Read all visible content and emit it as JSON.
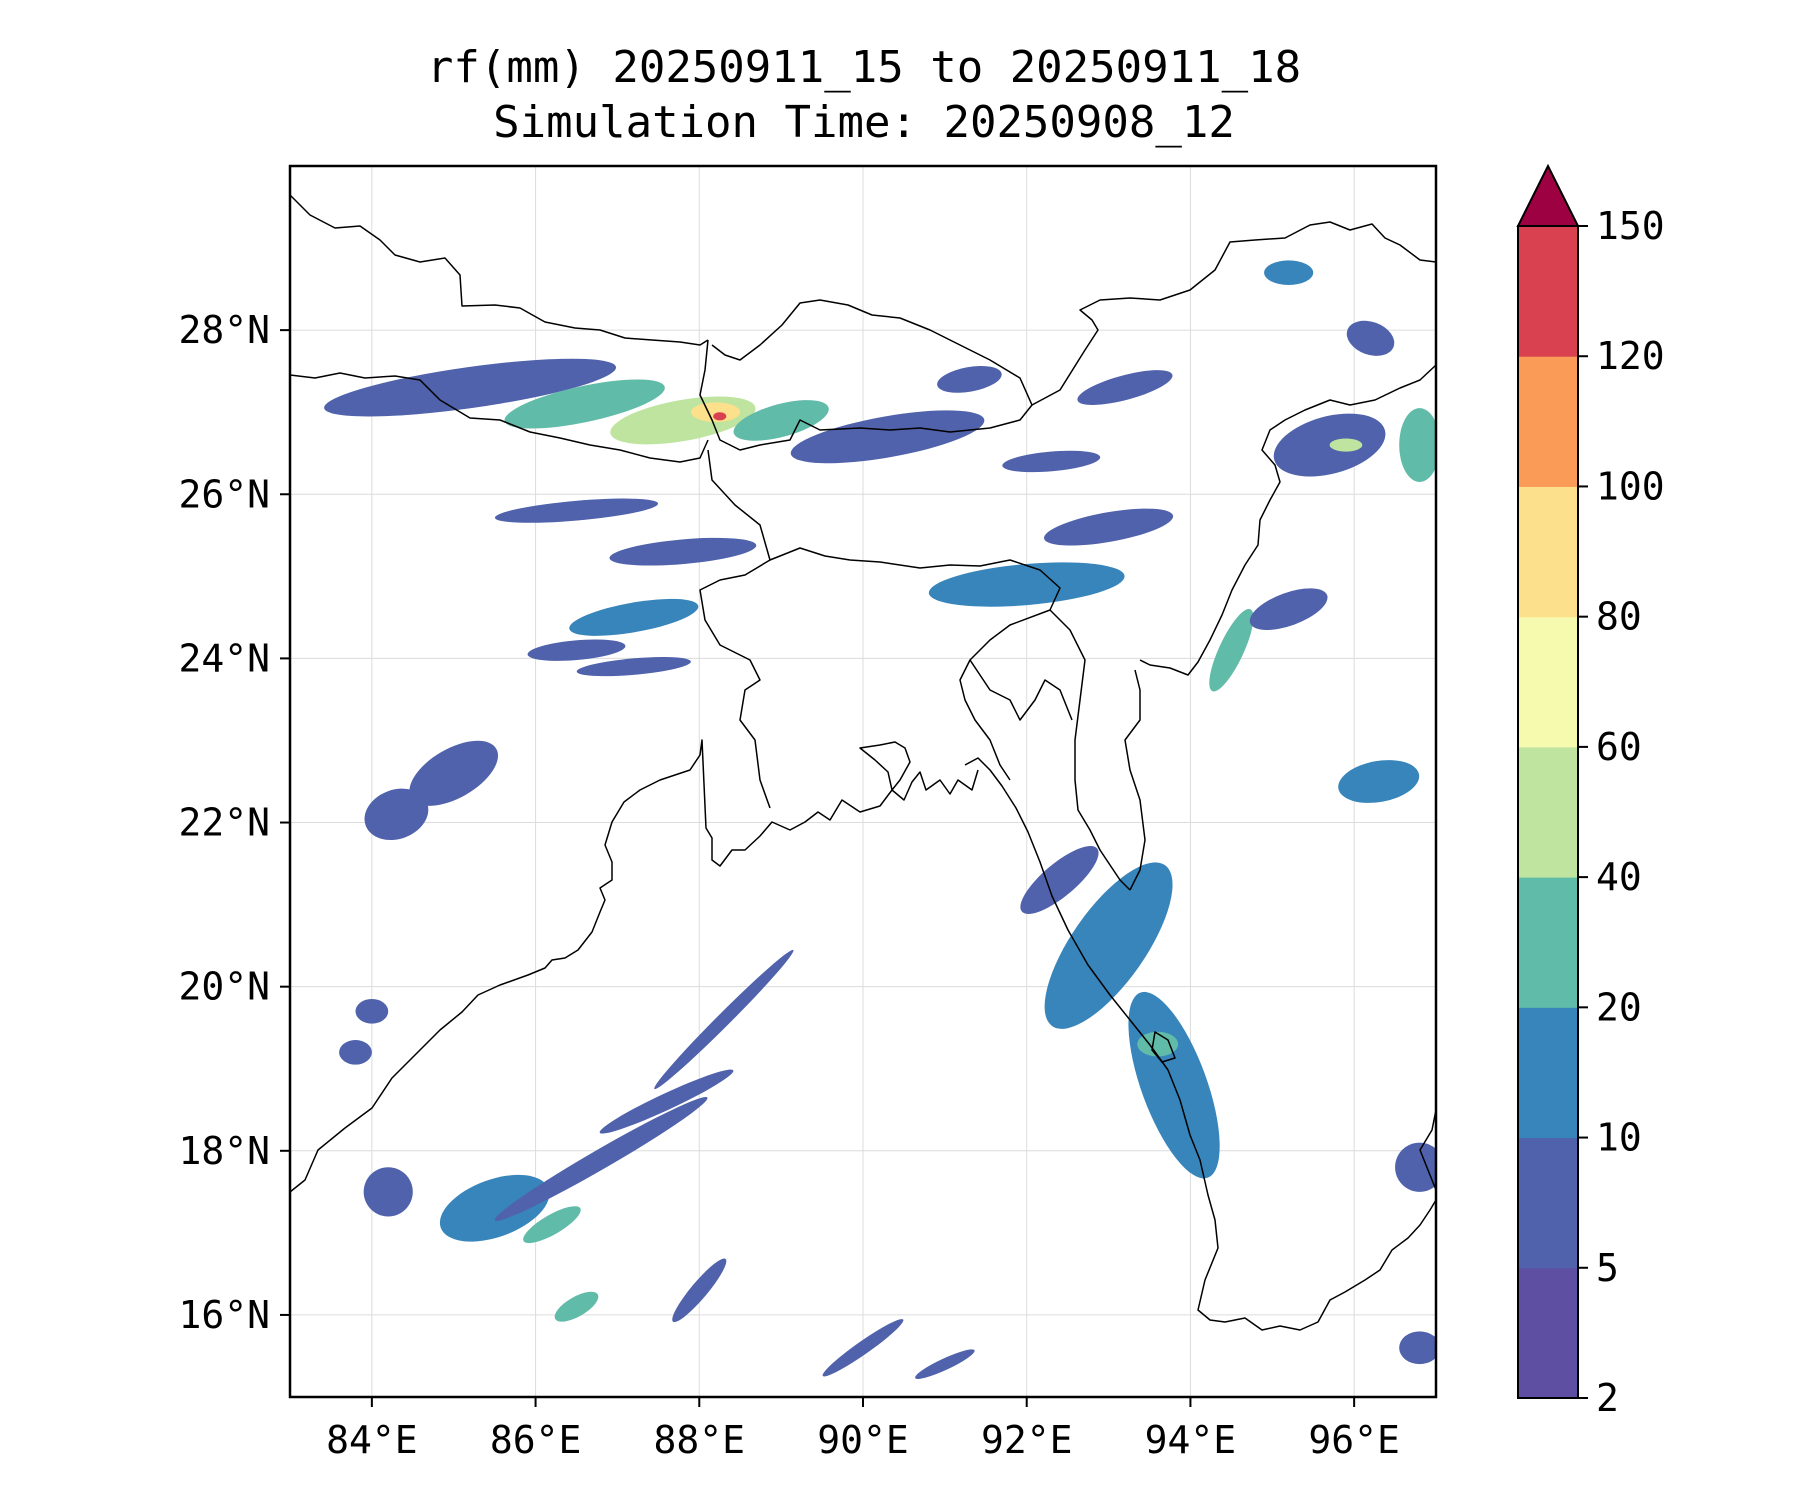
{
  "title": {
    "line1": "rf(mm) 20250911_15 to 20250911_18",
    "line2": "Simulation Time: 20250908_12"
  },
  "map": {
    "lon_range": [
      83,
      97
    ],
    "lat_range": [
      15,
      30
    ],
    "x_ticks": [
      "84°E",
      "86°E",
      "88°E",
      "90°E",
      "92°E",
      "94°E",
      "96°E"
    ],
    "x_tick_values": [
      84,
      86,
      88,
      90,
      92,
      94,
      96
    ],
    "y_ticks": [
      "28°N",
      "26°N",
      "24°N",
      "22°N",
      "20°N",
      "18°N",
      "16°N"
    ],
    "y_tick_values": [
      28,
      26,
      24,
      22,
      20,
      18,
      16
    ],
    "gridlines": true,
    "rain_cells": [
      {
        "lon": 85.2,
        "lat": 27.3,
        "rx": 1.8,
        "ry": 0.25,
        "rot": -8,
        "level": 1
      },
      {
        "lon": 86.6,
        "lat": 27.1,
        "rx": 1.0,
        "ry": 0.22,
        "rot": -12,
        "level": 3
      },
      {
        "lon": 87.8,
        "lat": 26.9,
        "rx": 0.9,
        "ry": 0.25,
        "rot": -10,
        "level": 4
      },
      {
        "lon": 88.2,
        "lat": 27.0,
        "rx": 0.3,
        "ry": 0.12,
        "rot": 0,
        "level": 6
      },
      {
        "lon": 88.25,
        "lat": 26.95,
        "rx": 0.08,
        "ry": 0.05,
        "rot": 0,
        "level": 9
      },
      {
        "lon": 89.0,
        "lat": 26.9,
        "rx": 0.6,
        "ry": 0.2,
        "rot": -15,
        "level": 3
      },
      {
        "lon": 90.3,
        "lat": 26.7,
        "rx": 1.2,
        "ry": 0.25,
        "rot": -10,
        "level": 1
      },
      {
        "lon": 86.5,
        "lat": 25.8,
        "rx": 1.0,
        "ry": 0.12,
        "rot": -5,
        "level": 1
      },
      {
        "lon": 87.8,
        "lat": 25.3,
        "rx": 0.9,
        "ry": 0.15,
        "rot": -5,
        "level": 1
      },
      {
        "lon": 87.2,
        "lat": 24.5,
        "rx": 0.8,
        "ry": 0.18,
        "rot": -10,
        "level": 2
      },
      {
        "lon": 86.5,
        "lat": 24.1,
        "rx": 0.6,
        "ry": 0.12,
        "rot": -5,
        "level": 1
      },
      {
        "lon": 87.2,
        "lat": 23.9,
        "rx": 0.7,
        "ry": 0.1,
        "rot": -5,
        "level": 1
      },
      {
        "lon": 85.0,
        "lat": 22.6,
        "rx": 0.6,
        "ry": 0.3,
        "rot": -30,
        "level": 1
      },
      {
        "lon": 84.3,
        "lat": 22.1,
        "rx": 0.4,
        "ry": 0.3,
        "rot": -20,
        "level": 1
      },
      {
        "lon": 84.0,
        "lat": 19.7,
        "rx": 0.2,
        "ry": 0.15,
        "rot": 0,
        "level": 1
      },
      {
        "lon": 83.8,
        "lat": 19.2,
        "rx": 0.2,
        "ry": 0.15,
        "rot": 0,
        "level": 1
      },
      {
        "lon": 92.0,
        "lat": 24.9,
        "rx": 1.2,
        "ry": 0.25,
        "rot": -5,
        "level": 2
      },
      {
        "lon": 93.0,
        "lat": 25.6,
        "rx": 0.8,
        "ry": 0.18,
        "rot": -10,
        "level": 1
      },
      {
        "lon": 92.3,
        "lat": 26.4,
        "rx": 0.6,
        "ry": 0.12,
        "rot": -5,
        "level": 1
      },
      {
        "lon": 93.2,
        "lat": 27.3,
        "rx": 0.6,
        "ry": 0.15,
        "rot": -15,
        "level": 1
      },
      {
        "lon": 91.3,
        "lat": 27.4,
        "rx": 0.4,
        "ry": 0.15,
        "rot": -10,
        "level": 1
      },
      {
        "lon": 95.7,
        "lat": 26.6,
        "rx": 0.7,
        "ry": 0.35,
        "rot": -15,
        "level": 1
      },
      {
        "lon": 95.9,
        "lat": 26.6,
        "rx": 0.2,
        "ry": 0.08,
        "rot": 0,
        "level": 4
      },
      {
        "lon": 96.8,
        "lat": 26.6,
        "rx": 0.25,
        "ry": 0.45,
        "rot": 0,
        "level": 3
      },
      {
        "lon": 95.2,
        "lat": 28.7,
        "rx": 0.3,
        "ry": 0.15,
        "rot": 0,
        "level": 2
      },
      {
        "lon": 96.2,
        "lat": 27.9,
        "rx": 0.3,
        "ry": 0.2,
        "rot": 20,
        "level": 1
      },
      {
        "lon": 94.5,
        "lat": 24.1,
        "rx": 0.15,
        "ry": 0.55,
        "rot": 25,
        "level": 3
      },
      {
        "lon": 95.2,
        "lat": 24.6,
        "rx": 0.5,
        "ry": 0.2,
        "rot": -20,
        "level": 1
      },
      {
        "lon": 96.3,
        "lat": 22.5,
        "rx": 0.5,
        "ry": 0.25,
        "rot": -10,
        "level": 2
      },
      {
        "lon": 93.0,
        "lat": 20.5,
        "rx": 1.2,
        "ry": 0.45,
        "rot": -55,
        "level": 2
      },
      {
        "lon": 92.4,
        "lat": 21.3,
        "rx": 0.6,
        "ry": 0.2,
        "rot": -40,
        "level": 1
      },
      {
        "lon": 93.8,
        "lat": 18.8,
        "rx": 0.4,
        "ry": 1.2,
        "rot": -20,
        "level": 2
      },
      {
        "lon": 93.6,
        "lat": 19.3,
        "rx": 0.25,
        "ry": 0.15,
        "rot": 0,
        "level": 3
      },
      {
        "lon": 85.5,
        "lat": 17.3,
        "rx": 0.7,
        "ry": 0.35,
        "rot": -20,
        "level": 2
      },
      {
        "lon": 86.2,
        "lat": 17.1,
        "rx": 0.4,
        "ry": 0.12,
        "rot": -30,
        "level": 3
      },
      {
        "lon": 86.8,
        "lat": 17.9,
        "rx": 1.5,
        "ry": 0.12,
        "rot": -30,
        "level": 1
      },
      {
        "lon": 88.3,
        "lat": 19.6,
        "rx": 1.2,
        "ry": 0.08,
        "rot": -45,
        "level": 1
      },
      {
        "lon": 87.6,
        "lat": 18.6,
        "rx": 0.9,
        "ry": 0.1,
        "rot": -25,
        "level": 1
      },
      {
        "lon": 86.5,
        "lat": 16.1,
        "rx": 0.3,
        "ry": 0.12,
        "rot": -30,
        "level": 3
      },
      {
        "lon": 88.0,
        "lat": 16.3,
        "rx": 0.5,
        "ry": 0.1,
        "rot": -50,
        "level": 1
      },
      {
        "lon": 90.0,
        "lat": 15.6,
        "rx": 0.6,
        "ry": 0.08,
        "rot": -35,
        "level": 1
      },
      {
        "lon": 91.0,
        "lat": 15.4,
        "rx": 0.4,
        "ry": 0.07,
        "rot": -25,
        "level": 1
      },
      {
        "lon": 96.8,
        "lat": 17.8,
        "rx": 0.3,
        "ry": 0.3,
        "rot": 0,
        "level": 1
      },
      {
        "lon": 96.8,
        "lat": 15.6,
        "rx": 0.25,
        "ry": 0.2,
        "rot": 0,
        "level": 1
      },
      {
        "lon": 84.2,
        "lat": 17.5,
        "rx": 0.3,
        "ry": 0.3,
        "rot": 0,
        "level": 1
      }
    ]
  },
  "colorbar": {
    "levels": [
      "2",
      "5",
      "10",
      "20",
      "40",
      "60",
      "80",
      "100",
      "120",
      "150"
    ],
    "colors": [
      "#5e4fa2",
      "#4f62ab",
      "#3785bb",
      "#61bba9",
      "#bfe4a0",
      "#f6faaf",
      "#fde08b",
      "#fa9b58",
      "#da4150"
    ],
    "extend_color": "#9e0142",
    "extend": "max"
  },
  "colors": {
    "coast": "#000000",
    "grid": "#dcdcdc",
    "frame": "#000000"
  }
}
